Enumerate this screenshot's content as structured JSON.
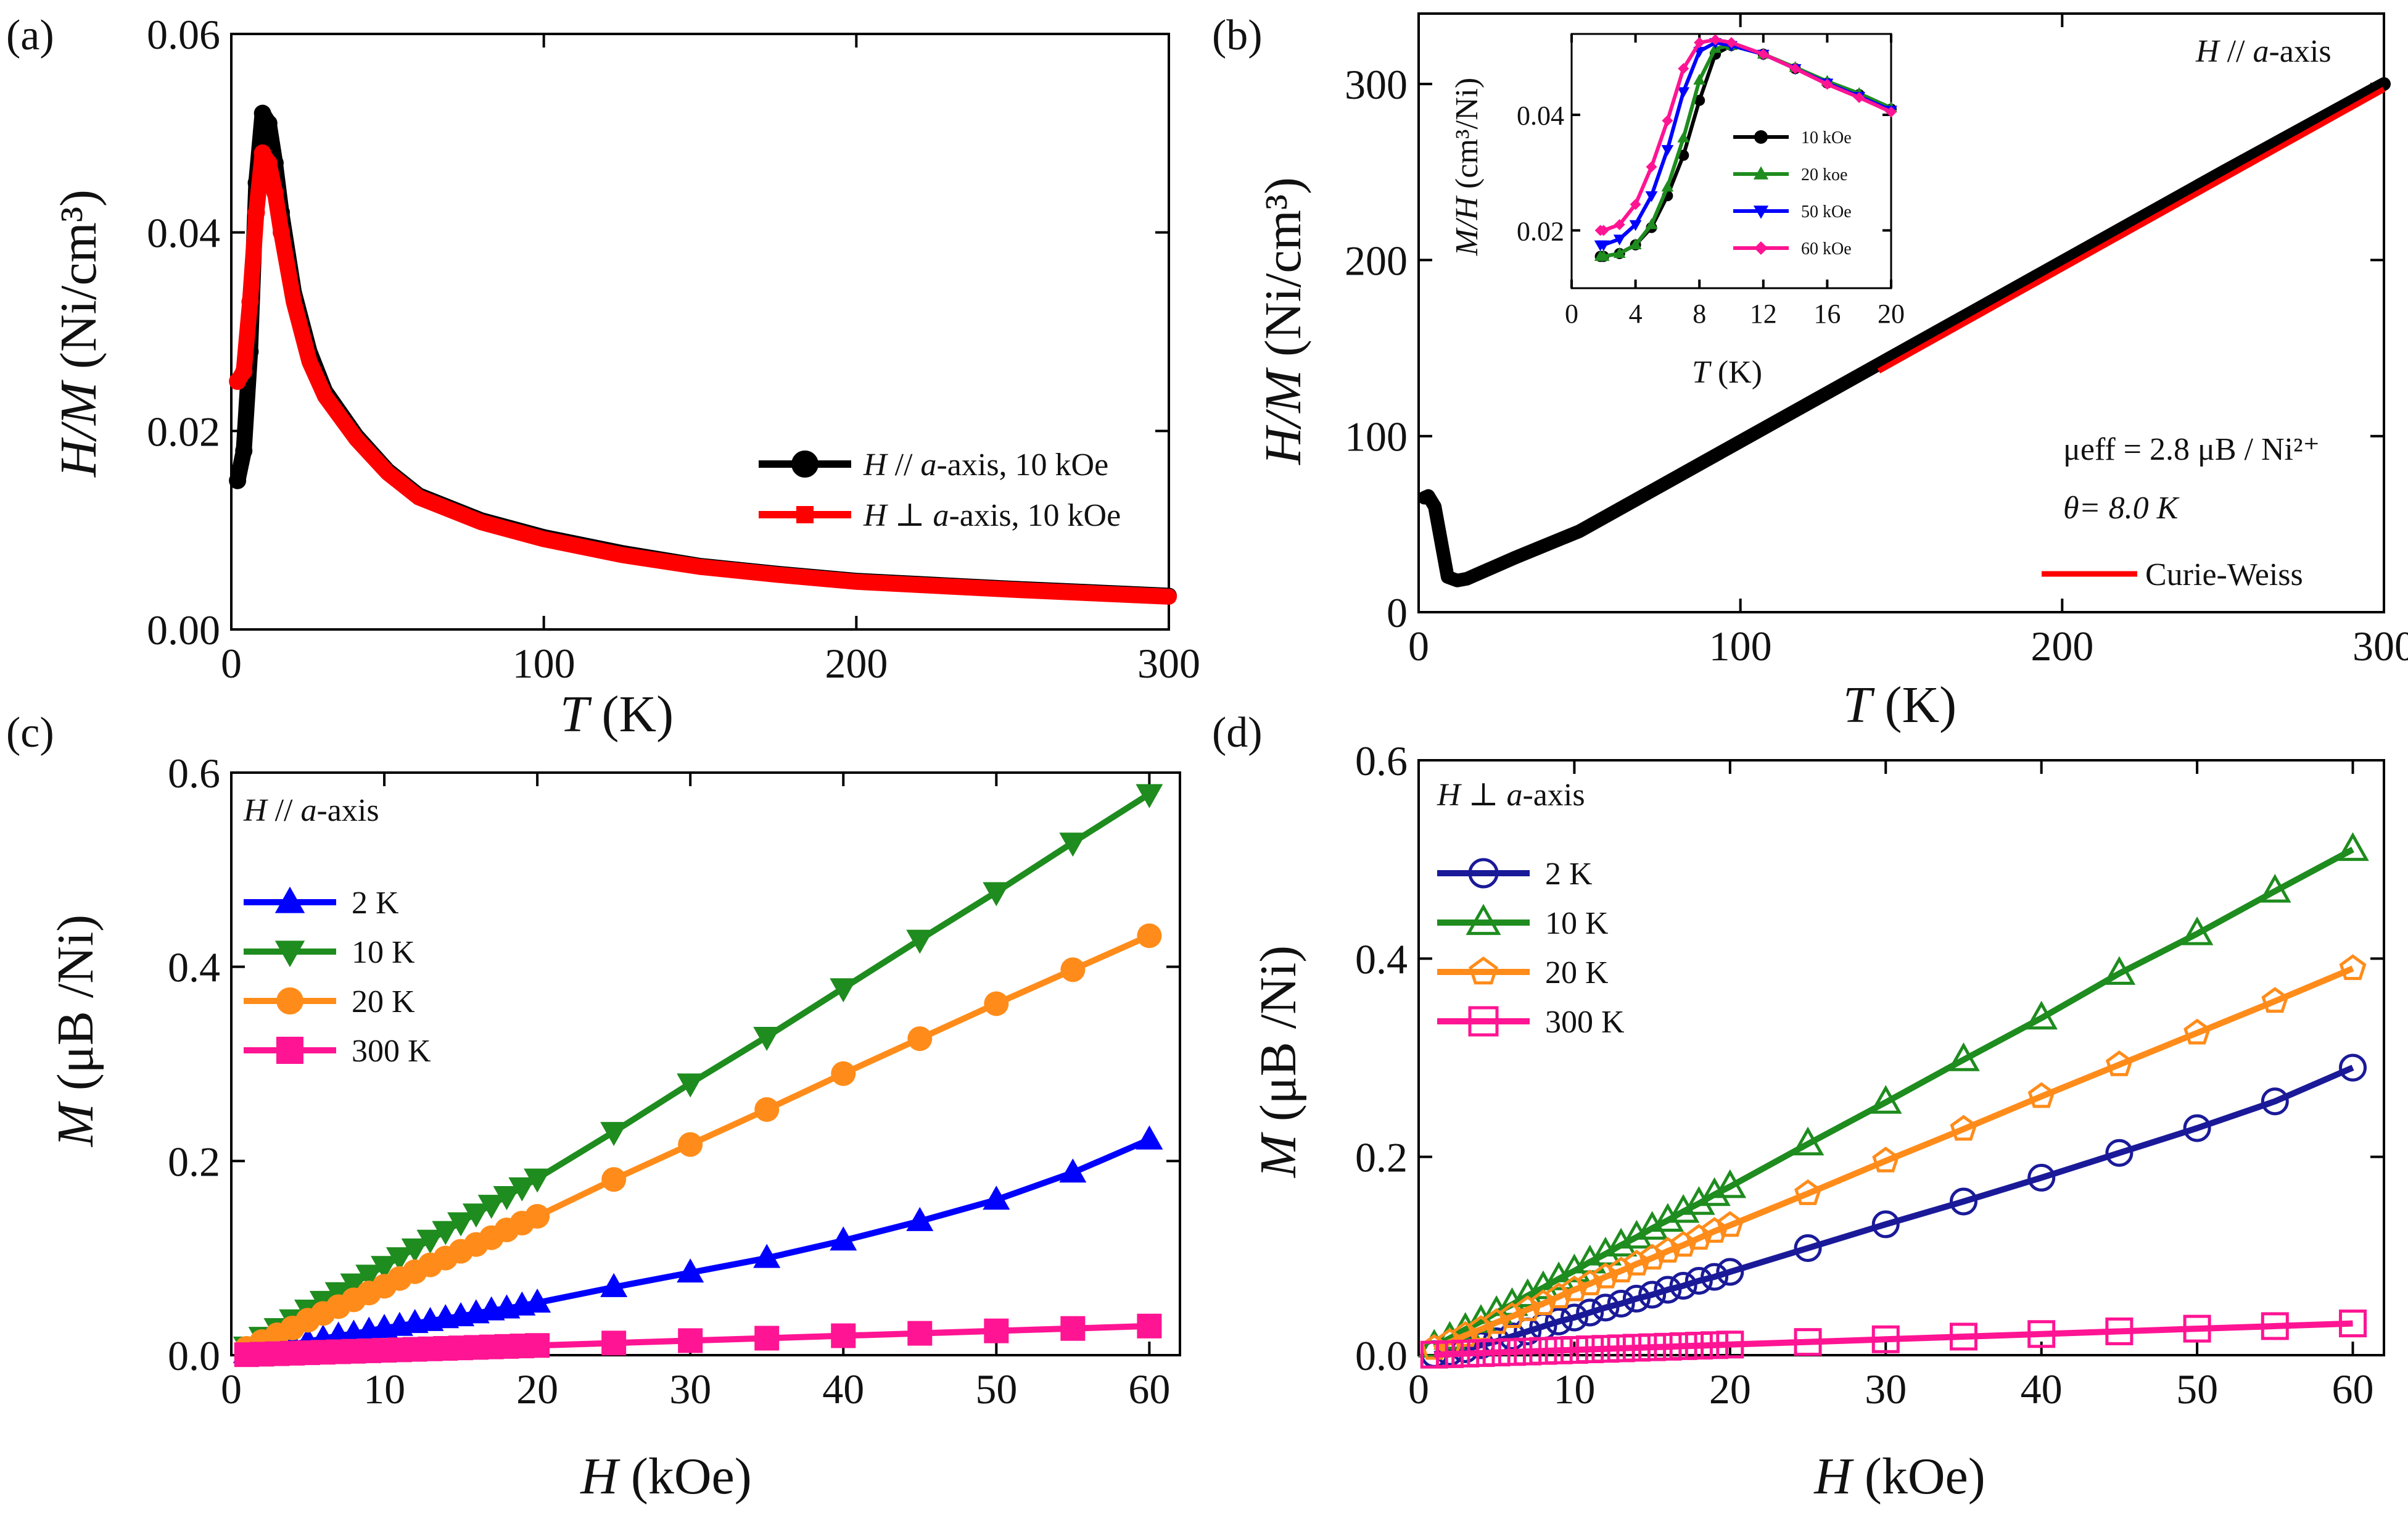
{
  "chart_data": [
    {
      "panel": "(a)",
      "type": "line",
      "xlabel_var": "T",
      "xlabel_unit": " (K)",
      "ylabel_var": "H/M",
      "ylabel_unit": " (Ni/cm³)",
      "xlim": [
        0,
        300
      ],
      "ylim": [
        0,
        0.06
      ],
      "xticks": [
        0,
        100,
        200,
        300
      ],
      "yticks": [
        0.0,
        0.02,
        0.04,
        0.06
      ],
      "ytick_labels": [
        "0.00",
        "0.02",
        "0.04",
        "0.06"
      ],
      "legend": [
        "H // a-axis, 10 kOe",
        "H ⊥ a-axis, 10 kOe"
      ],
      "legend_placement": "center-right",
      "series": [
        {
          "name": "H // a-axis, 10 kOe",
          "color": "#000000",
          "x": [
            2,
            4,
            6,
            8,
            10,
            12,
            14,
            16,
            20,
            25,
            30,
            40,
            50,
            60,
            80,
            100,
            125,
            150,
            175,
            200,
            250,
            300
          ],
          "y": [
            0.015,
            0.018,
            0.028,
            0.045,
            0.052,
            0.051,
            0.047,
            0.042,
            0.034,
            0.028,
            0.024,
            0.0195,
            0.016,
            0.0135,
            0.011,
            0.0093,
            0.0077,
            0.0064,
            0.0056,
            0.0049,
            0.0041,
            0.0034
          ]
        },
        {
          "name": "H ⊥ a-axis, 10 kOe",
          "color": "#ff0000",
          "x": [
            2,
            4,
            6,
            8,
            10,
            12,
            14,
            16,
            20,
            25,
            30,
            40,
            50,
            60,
            80,
            100,
            125,
            150,
            175,
            200,
            250,
            300
          ],
          "y": [
            0.025,
            0.026,
            0.033,
            0.042,
            0.048,
            0.047,
            0.044,
            0.04,
            0.033,
            0.027,
            0.0235,
            0.0192,
            0.0158,
            0.0133,
            0.0108,
            0.0091,
            0.0075,
            0.0063,
            0.0055,
            0.0048,
            0.004,
            0.0033
          ]
        }
      ]
    },
    {
      "panel": "(b)",
      "type": "line",
      "xlabel_var": "T",
      "xlabel_unit": " (K)",
      "ylabel_var": "H/M",
      "ylabel_unit": " (Ni/cm³)",
      "xlim": [
        0,
        300
      ],
      "ylim": [
        0,
        340
      ],
      "xticks": [
        0,
        100,
        200,
        300
      ],
      "yticks": [
        0,
        100,
        200,
        300
      ],
      "orientation_label": "H // a-axis",
      "ann_mu": "μeff = 2.8 μB / Ni²⁺",
      "ann_theta": "θ= 8.0 K",
      "legend": [
        "Curie-Weiss"
      ],
      "series": [
        {
          "name": "H // a-axis data",
          "color": "#000000",
          "x": [
            1.8,
            3,
            5,
            7,
            9,
            12,
            15,
            20,
            30,
            50,
            100,
            150,
            200,
            250,
            300
          ],
          "y": [
            65,
            66,
            60,
            40,
            20,
            18,
            19,
            23,
            31,
            46,
            97,
            148,
            199,
            250,
            300
          ]
        },
        {
          "name": "Curie-Weiss",
          "color": "#ff0000",
          "x": [
            143,
            300
          ],
          "y": [
            137,
            297
          ]
        }
      ],
      "inset": {
        "type": "line",
        "xlabel_var": "T",
        "xlabel_unit": " (K)",
        "ylabel_var": "M/H",
        "ylabel_unit": " (cm³/Ni)",
        "xlim": [
          0,
          20
        ],
        "ylim": [
          0.01,
          0.054
        ],
        "xticks": [
          0,
          4,
          8,
          12,
          16,
          20
        ],
        "yticks": [
          0.02,
          0.04
        ],
        "ytick_labels": [
          "0.02",
          "0.04"
        ],
        "series": [
          {
            "name": "10 kOe",
            "color": "#000000",
            "x": [
              1.8,
              2,
              3,
              4,
              5,
              6,
              7,
              8,
              9,
              10,
              12,
              14,
              16,
              18,
              20
            ],
            "y": [
              0.0155,
              0.0155,
              0.016,
              0.0175,
              0.0205,
              0.026,
              0.033,
              0.0425,
              0.0505,
              0.052,
              0.0505,
              0.048,
              0.0455,
              0.0435,
              0.041
            ]
          },
          {
            "name": "20 koe",
            "color": "#1e8c1e",
            "x": [
              1.8,
              2,
              3,
              4,
              5,
              6,
              7,
              8,
              9,
              10,
              12,
              14,
              16,
              18,
              20
            ],
            "y": [
              0.0155,
              0.0155,
              0.016,
              0.0175,
              0.021,
              0.0275,
              0.036,
              0.046,
              0.0515,
              0.052,
              0.0505,
              0.0482,
              0.0458,
              0.0437,
              0.0412
            ]
          },
          {
            "name": "50 kOe",
            "color": "#0000ff",
            "x": [
              1.8,
              2,
              3,
              4,
              5,
              6,
              7,
              8,
              9,
              10,
              12,
              14,
              16,
              18,
              20
            ],
            "y": [
              0.0175,
              0.0175,
              0.0185,
              0.021,
              0.026,
              0.034,
              0.044,
              0.051,
              0.0525,
              0.052,
              0.0505,
              0.048,
              0.0455,
              0.0432,
              0.0408
            ]
          },
          {
            "name": "60 kOe",
            "color": "#ff1493",
            "x": [
              1.8,
              2,
              3,
              4,
              5,
              6,
              7,
              8,
              9,
              10,
              12,
              14,
              16,
              18,
              20
            ],
            "y": [
              0.02,
              0.02,
              0.021,
              0.0245,
              0.031,
              0.039,
              0.048,
              0.0525,
              0.053,
              0.0525,
              0.0505,
              0.048,
              0.0453,
              0.043,
              0.0405
            ]
          }
        ]
      }
    },
    {
      "panel": "(c)",
      "type": "line",
      "xlabel_var": "H",
      "xlabel_unit": " (kOe)",
      "ylabel_var": "M",
      "ylabel_unit": " (μB /Ni)",
      "xlim": [
        0,
        62
      ],
      "ylim": [
        0,
        0.6
      ],
      "xticks": [
        0,
        10,
        20,
        30,
        40,
        50,
        60
      ],
      "yticks": [
        0.0,
        0.2,
        0.4,
        0.6
      ],
      "ytick_labels": [
        "0.0",
        "0.2",
        "0.4",
        "0.6"
      ],
      "orientation_label": "H // a-axis",
      "legend": [
        "2 K",
        "10 K",
        "20 K",
        "300 K"
      ],
      "x": [
        1,
        2,
        3,
        4,
        5,
        6,
        7,
        8,
        9,
        10,
        11,
        12,
        13,
        14,
        15,
        16,
        17,
        18,
        19,
        20,
        25,
        30,
        35,
        40,
        45,
        50,
        55,
        60
      ],
      "series": [
        {
          "name": "2 K",
          "color": "#0000ff",
          "marker": "triangle-up",
          "y": [
            0.002,
            0.005,
            0.008,
            0.011,
            0.014,
            0.017,
            0.02,
            0.022,
            0.025,
            0.028,
            0.03,
            0.033,
            0.035,
            0.038,
            0.04,
            0.043,
            0.046,
            0.048,
            0.051,
            0.054,
            0.07,
            0.085,
            0.1,
            0.118,
            0.138,
            0.16,
            0.188,
            0.222
          ]
        },
        {
          "name": "10 K",
          "color": "#1e8c1e",
          "marker": "triangle-down",
          "y": [
            0.009,
            0.019,
            0.028,
            0.037,
            0.047,
            0.056,
            0.065,
            0.074,
            0.083,
            0.092,
            0.101,
            0.11,
            0.119,
            0.128,
            0.137,
            0.146,
            0.155,
            0.164,
            0.173,
            0.182,
            0.23,
            0.28,
            0.328,
            0.378,
            0.428,
            0.477,
            0.528,
            0.578
          ]
        },
        {
          "name": "20 K",
          "color": "#ff8c1a",
          "marker": "circle",
          "y": [
            0.007,
            0.014,
            0.021,
            0.028,
            0.036,
            0.043,
            0.05,
            0.057,
            0.064,
            0.071,
            0.079,
            0.086,
            0.093,
            0.1,
            0.107,
            0.114,
            0.121,
            0.129,
            0.136,
            0.143,
            0.181,
            0.217,
            0.253,
            0.29,
            0.326,
            0.362,
            0.397,
            0.432
          ]
        },
        {
          "name": "300 K",
          "color": "#ff1493",
          "marker": "square",
          "y": [
            0.0005,
            0.001,
            0.0015,
            0.002,
            0.0025,
            0.003,
            0.0035,
            0.004,
            0.0045,
            0.005,
            0.0055,
            0.006,
            0.0065,
            0.007,
            0.0075,
            0.008,
            0.0085,
            0.009,
            0.0095,
            0.01,
            0.0125,
            0.015,
            0.0175,
            0.02,
            0.0225,
            0.025,
            0.0275,
            0.03
          ]
        }
      ]
    },
    {
      "panel": "(d)",
      "type": "line",
      "xlabel_var": "H",
      "xlabel_unit": " (kOe)",
      "ylabel_var": "M",
      "ylabel_unit": " (μB /Ni)",
      "xlim": [
        0,
        62
      ],
      "ylim": [
        0,
        0.6
      ],
      "xticks": [
        0,
        10,
        20,
        30,
        40,
        50,
        60
      ],
      "yticks": [
        0.0,
        0.2,
        0.4,
        0.6
      ],
      "ytick_labels": [
        "0.0",
        "0.2",
        "0.4",
        "0.6"
      ],
      "orientation_label": "H ⊥ a-axis",
      "legend": [
        "2 K",
        "10 K",
        "20 K",
        "300 K"
      ],
      "x": [
        1,
        2,
        3,
        4,
        5,
        6,
        7,
        8,
        9,
        10,
        11,
        12,
        13,
        14,
        15,
        16,
        17,
        18,
        19,
        20,
        25,
        30,
        35,
        40,
        45,
        50,
        55,
        60
      ],
      "series": [
        {
          "name": "2 K",
          "color": "#1a1a99",
          "marker": "open-circle",
          "y": [
            0.001,
            0.003,
            0.006,
            0.01,
            0.014,
            0.019,
            0.024,
            0.029,
            0.034,
            0.038,
            0.043,
            0.048,
            0.052,
            0.057,
            0.061,
            0.066,
            0.07,
            0.075,
            0.079,
            0.084,
            0.108,
            0.132,
            0.155,
            0.179,
            0.204,
            0.229,
            0.256,
            0.29
          ]
        },
        {
          "name": "10 K",
          "color": "#1e8c1e",
          "marker": "open-triangle",
          "y": [
            0.009,
            0.017,
            0.026,
            0.034,
            0.043,
            0.051,
            0.06,
            0.068,
            0.077,
            0.085,
            0.094,
            0.102,
            0.111,
            0.119,
            0.128,
            0.136,
            0.145,
            0.153,
            0.162,
            0.17,
            0.213,
            0.255,
            0.298,
            0.34,
            0.385,
            0.425,
            0.468,
            0.51
          ]
        },
        {
          "name": "20 K",
          "color": "#ff8c1a",
          "marker": "open-pentagon",
          "y": [
            0.007,
            0.013,
            0.02,
            0.026,
            0.033,
            0.039,
            0.046,
            0.052,
            0.059,
            0.066,
            0.072,
            0.079,
            0.085,
            0.092,
            0.098,
            0.105,
            0.111,
            0.118,
            0.125,
            0.131,
            0.163,
            0.196,
            0.228,
            0.261,
            0.293,
            0.325,
            0.357,
            0.39
          ]
        },
        {
          "name": "300 K",
          "color": "#ff1493",
          "marker": "open-square",
          "y": [
            0.0005,
            0.001,
            0.0016,
            0.0021,
            0.0027,
            0.0032,
            0.0037,
            0.0043,
            0.0048,
            0.0053,
            0.0059,
            0.0064,
            0.0069,
            0.0075,
            0.008,
            0.0085,
            0.0091,
            0.0096,
            0.0101,
            0.0107,
            0.0133,
            0.016,
            0.0187,
            0.0213,
            0.024,
            0.0267,
            0.0293,
            0.032
          ]
        }
      ]
    }
  ]
}
